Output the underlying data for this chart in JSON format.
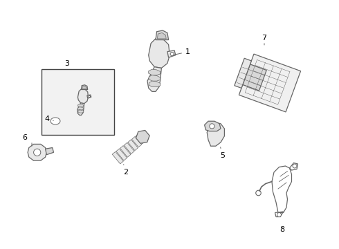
{
  "bg_color": "#ffffff",
  "line_color": "#666666",
  "label_color": "#000000",
  "fig_w": 4.9,
  "fig_h": 3.6,
  "dpi": 100
}
